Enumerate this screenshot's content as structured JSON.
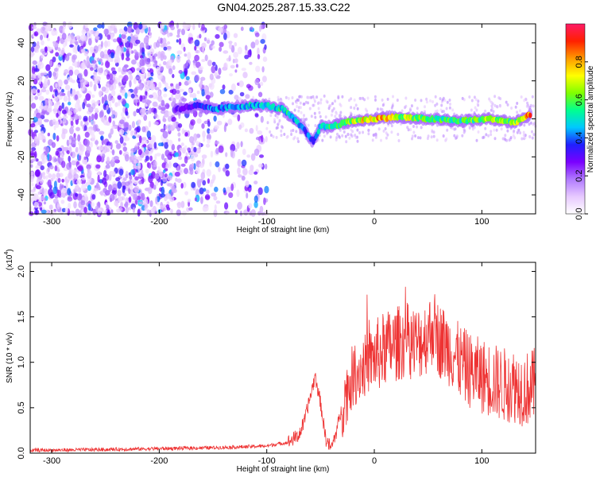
{
  "title": "GN04.2025.287.15.33.C22",
  "chart_data": [
    {
      "type": "heatmap",
      "name": "spectrogram",
      "xlabel": "Height of straight line (km)",
      "ylabel": "Frequency (Hz)",
      "xlim": [
        -320,
        150
      ],
      "ylim": [
        -50,
        50
      ],
      "xticks": [
        -300,
        -200,
        -100,
        0,
        100
      ],
      "yticks": [
        -40,
        -20,
        0,
        20,
        40
      ],
      "xtick_labels": [
        "-300",
        "-200",
        "-100",
        "0",
        "100"
      ],
      "ytick_labels": [
        "-40",
        "-20",
        "0",
        "20",
        "40"
      ],
      "colorbar": {
        "label": "Normalized spectral amplitude",
        "range": [
          0,
          1
        ],
        "ticks": [
          0.0,
          0.2,
          0.4,
          0.6,
          0.8
        ],
        "tick_labels": [
          "0.0",
          "0.2",
          "0.4",
          "0.6",
          "0.8"
        ],
        "colors": [
          "#ffffff",
          "#e7c9ff",
          "#b07aff",
          "#7a00ff",
          "#2020ff",
          "#00c8ff",
          "#00ff90",
          "#80ff00",
          "#ffff00",
          "#ff9a00",
          "#ff2000",
          "#ff1a66"
        ]
      },
      "ridge": [
        {
          "x": -185,
          "freq": 5,
          "amp": 0.3
        },
        {
          "x": -165,
          "freq": 7,
          "amp": 0.35
        },
        {
          "x": -150,
          "freq": 5,
          "amp": 0.45
        },
        {
          "x": -135,
          "freq": 6,
          "amp": 0.45
        },
        {
          "x": -115,
          "freq": 7,
          "amp": 0.5
        },
        {
          "x": -100,
          "freq": 7,
          "amp": 0.5
        },
        {
          "x": -85,
          "freq": 5,
          "amp": 0.55
        },
        {
          "x": -75,
          "freq": 0,
          "amp": 0.5
        },
        {
          "x": -65,
          "freq": -6,
          "amp": 0.45
        },
        {
          "x": -57,
          "freq": -12,
          "amp": 0.4
        },
        {
          "x": -50,
          "freq": -4,
          "amp": 0.5
        },
        {
          "x": -40,
          "freq": -4,
          "amp": 0.6
        },
        {
          "x": -20,
          "freq": -1,
          "amp": 0.7
        },
        {
          "x": 0,
          "freq": 0,
          "amp": 0.85
        },
        {
          "x": 20,
          "freq": 1,
          "amp": 0.75
        },
        {
          "x": 50,
          "freq": 0,
          "amp": 0.6
        },
        {
          "x": 80,
          "freq": -1,
          "amp": 0.6
        },
        {
          "x": 110,
          "freq": 0,
          "amp": 0.7
        },
        {
          "x": 130,
          "freq": -2,
          "amp": 0.65
        },
        {
          "x": 145,
          "freq": 2,
          "amp": 0.85
        }
      ]
    },
    {
      "type": "line",
      "name": "snr",
      "xlabel": "Height of straight line (km)",
      "ylabel": "SNR (10 * v/v)",
      "y_multiplier": "(x10",
      "y_multiplier_exp": "4",
      "y_multiplier_close": ")",
      "xlim": [
        -320,
        150
      ],
      "ylim": [
        0,
        2.1
      ],
      "xticks": [
        -300,
        -200,
        -100,
        0,
        100
      ],
      "yticks": [
        0.0,
        0.5,
        1.0,
        1.5,
        2.0
      ],
      "xtick_labels": [
        "-300",
        "-200",
        "-100",
        "0",
        "100"
      ],
      "ytick_labels": [
        "0.0",
        "0.5",
        "1.0",
        "1.5",
        "2.0"
      ],
      "color": "#ee3333",
      "series": [
        {
          "name": "SNR",
          "x": [
            -320,
            -250,
            -200,
            -150,
            -120,
            -100,
            -80,
            -70,
            -65,
            -60,
            -55,
            -50,
            -45,
            -40,
            -35,
            -30,
            -25,
            -20,
            -10,
            0,
            10,
            20,
            30,
            40,
            50,
            55,
            60,
            70,
            80,
            90,
            100,
            110,
            120,
            130,
            140,
            150
          ],
          "y": [
            0.03,
            0.04,
            0.05,
            0.06,
            0.07,
            0.08,
            0.12,
            0.2,
            0.35,
            0.6,
            0.85,
            0.55,
            0.15,
            0.05,
            0.25,
            0.5,
            0.7,
            0.85,
            0.95,
            1.05,
            1.15,
            1.2,
            1.25,
            1.2,
            1.3,
            1.4,
            1.25,
            1.15,
            1.0,
            0.9,
            0.85,
            0.8,
            0.75,
            0.75,
            0.7,
            0.75
          ]
        }
      ]
    }
  ]
}
